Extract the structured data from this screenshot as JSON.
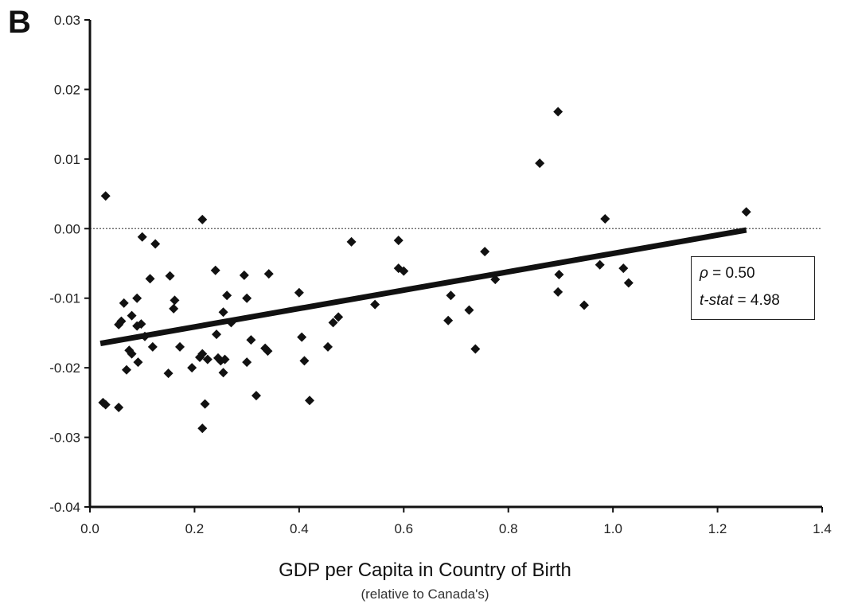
{
  "panel_label": "B",
  "chart_data": {
    "type": "scatter",
    "title": "",
    "xlabel": "GDP per Capita in Country of Birth",
    "xlabel_sub": "(relative to Canada's)",
    "ylabel": "",
    "xlim": [
      0.0,
      1.4
    ],
    "ylim": [
      -0.04,
      0.03
    ],
    "x_ticks": [
      "0.0",
      "0.2",
      "0.4",
      "0.6",
      "0.8",
      "1.0",
      "1.2",
      "1.4"
    ],
    "y_ticks": [
      "0.03",
      "0.02",
      "0.01",
      "0.00",
      "-0.01",
      "-0.02",
      "-0.03",
      "-0.04"
    ],
    "grid": false,
    "reference_line": {
      "y": 0.0,
      "style": "dotted"
    },
    "fit_line": {
      "x": [
        0.02,
        1.255
      ],
      "y": [
        -0.0165,
        -0.0002
      ]
    },
    "stats": {
      "rho_label": "ρ",
      "rho_value": "= 0.50",
      "tstat_label": "t-stat",
      "tstat_value": "= 4.98"
    },
    "points": [
      {
        "x": 0.03,
        "y": 0.0047
      },
      {
        "x": 0.025,
        "y": -0.025
      },
      {
        "x": 0.03,
        "y": -0.0253
      },
      {
        "x": 0.055,
        "y": -0.0257
      },
      {
        "x": 0.055,
        "y": -0.0138
      },
      {
        "x": 0.06,
        "y": -0.0133
      },
      {
        "x": 0.065,
        "y": -0.0107
      },
      {
        "x": 0.07,
        "y": -0.0203
      },
      {
        "x": 0.075,
        "y": -0.0175
      },
      {
        "x": 0.08,
        "y": -0.018
      },
      {
        "x": 0.08,
        "y": -0.0125
      },
      {
        "x": 0.09,
        "y": -0.014
      },
      {
        "x": 0.09,
        "y": -0.01
      },
      {
        "x": 0.092,
        "y": -0.0192
      },
      {
        "x": 0.098,
        "y": -0.0137
      },
      {
        "x": 0.1,
        "y": -0.0012
      },
      {
        "x": 0.105,
        "y": -0.0155
      },
      {
        "x": 0.115,
        "y": -0.0072
      },
      {
        "x": 0.12,
        "y": -0.017
      },
      {
        "x": 0.125,
        "y": -0.0022
      },
      {
        "x": 0.15,
        "y": -0.0208
      },
      {
        "x": 0.153,
        "y": -0.0068
      },
      {
        "x": 0.16,
        "y": -0.0115
      },
      {
        "x": 0.162,
        "y": -0.0103
      },
      {
        "x": 0.172,
        "y": -0.017
      },
      {
        "x": 0.195,
        "y": -0.02
      },
      {
        "x": 0.21,
        "y": -0.0185
      },
      {
        "x": 0.215,
        "y": -0.018
      },
      {
        "x": 0.215,
        "y": 0.0013
      },
      {
        "x": 0.215,
        "y": -0.0287
      },
      {
        "x": 0.22,
        "y": -0.0252
      },
      {
        "x": 0.225,
        "y": -0.0188
      },
      {
        "x": 0.24,
        "y": -0.006
      },
      {
        "x": 0.242,
        "y": -0.0152
      },
      {
        "x": 0.245,
        "y": -0.0186
      },
      {
        "x": 0.25,
        "y": -0.019
      },
      {
        "x": 0.255,
        "y": -0.0207
      },
      {
        "x": 0.255,
        "y": -0.012
      },
      {
        "x": 0.258,
        "y": -0.0188
      },
      {
        "x": 0.262,
        "y": -0.0096
      },
      {
        "x": 0.27,
        "y": -0.0135
      },
      {
        "x": 0.295,
        "y": -0.0067
      },
      {
        "x": 0.3,
        "y": -0.0192
      },
      {
        "x": 0.3,
        "y": -0.01
      },
      {
        "x": 0.308,
        "y": -0.016
      },
      {
        "x": 0.318,
        "y": -0.024
      },
      {
        "x": 0.335,
        "y": -0.0172
      },
      {
        "x": 0.34,
        "y": -0.0176
      },
      {
        "x": 0.342,
        "y": -0.0065
      },
      {
        "x": 0.4,
        "y": -0.0092
      },
      {
        "x": 0.405,
        "y": -0.0156
      },
      {
        "x": 0.41,
        "y": -0.019
      },
      {
        "x": 0.42,
        "y": -0.0247
      },
      {
        "x": 0.455,
        "y": -0.017
      },
      {
        "x": 0.465,
        "y": -0.0135
      },
      {
        "x": 0.475,
        "y": -0.0127
      },
      {
        "x": 0.5,
        "y": -0.0019
      },
      {
        "x": 0.545,
        "y": -0.0109
      },
      {
        "x": 0.59,
        "y": -0.0017
      },
      {
        "x": 0.59,
        "y": -0.0057
      },
      {
        "x": 0.6,
        "y": -0.0061
      },
      {
        "x": 0.685,
        "y": -0.0132
      },
      {
        "x": 0.69,
        "y": -0.0096
      },
      {
        "x": 0.725,
        "y": -0.0117
      },
      {
        "x": 0.737,
        "y": -0.0173
      },
      {
        "x": 0.755,
        "y": -0.0033
      },
      {
        "x": 0.775,
        "y": -0.0073
      },
      {
        "x": 0.86,
        "y": 0.0094
      },
      {
        "x": 0.895,
        "y": 0.0168
      },
      {
        "x": 0.895,
        "y": -0.0091
      },
      {
        "x": 0.897,
        "y": -0.0066
      },
      {
        "x": 0.945,
        "y": -0.011
      },
      {
        "x": 0.975,
        "y": -0.0052
      },
      {
        "x": 0.985,
        "y": 0.0014
      },
      {
        "x": 1.02,
        "y": -0.0057
      },
      {
        "x": 1.03,
        "y": -0.0078
      },
      {
        "x": 1.255,
        "y": 0.0024
      }
    ]
  }
}
